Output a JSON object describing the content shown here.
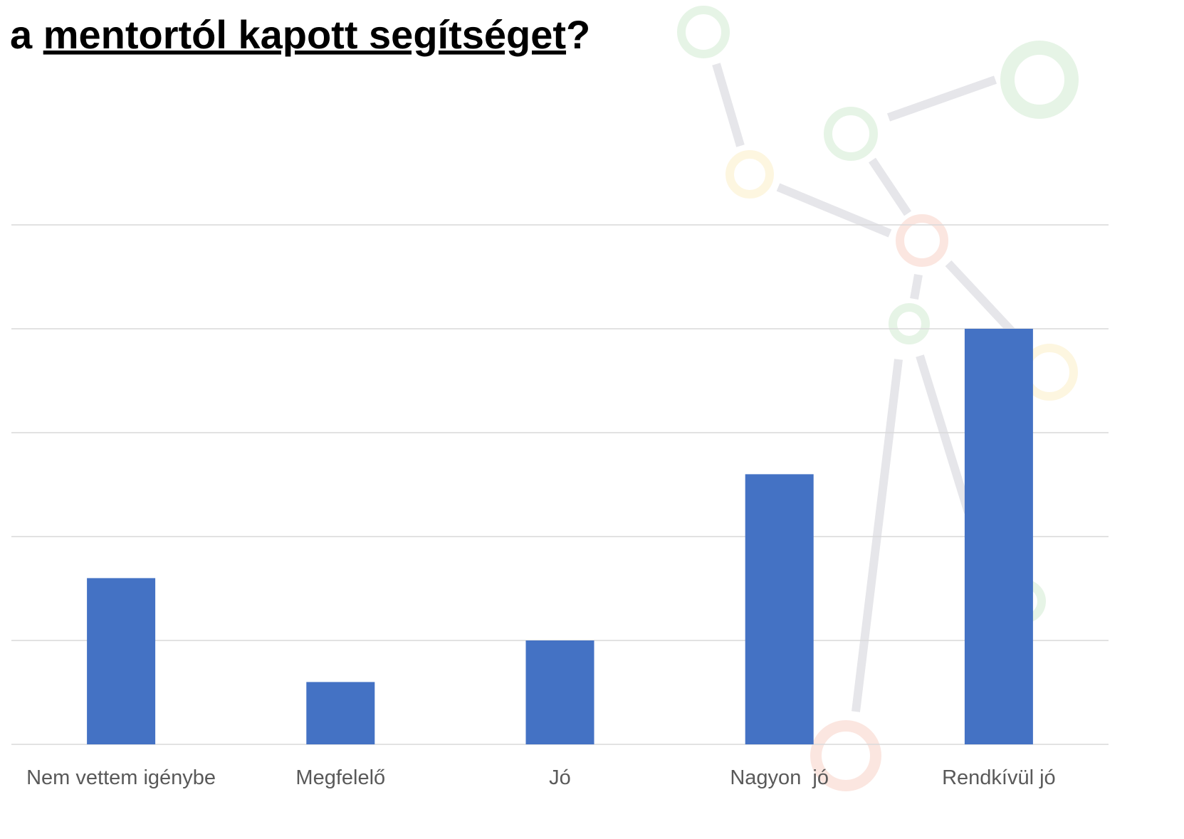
{
  "chart_data": {
    "type": "bar",
    "title_parts": [
      "a ",
      "mentortól kapott segítséget",
      "?"
    ],
    "categories": [
      "Nem vettem igénybe",
      "Megfelelő",
      "Jó",
      "Nagyon  jó",
      "Rendkívül jó"
    ],
    "values": [
      1.6,
      0.6,
      1,
      2.6,
      4
    ],
    "color": "#4472c4",
    "ylim": [
      0,
      5
    ],
    "yticks": [
      0,
      1,
      2,
      3,
      4,
      5
    ],
    "grid": true
  }
}
